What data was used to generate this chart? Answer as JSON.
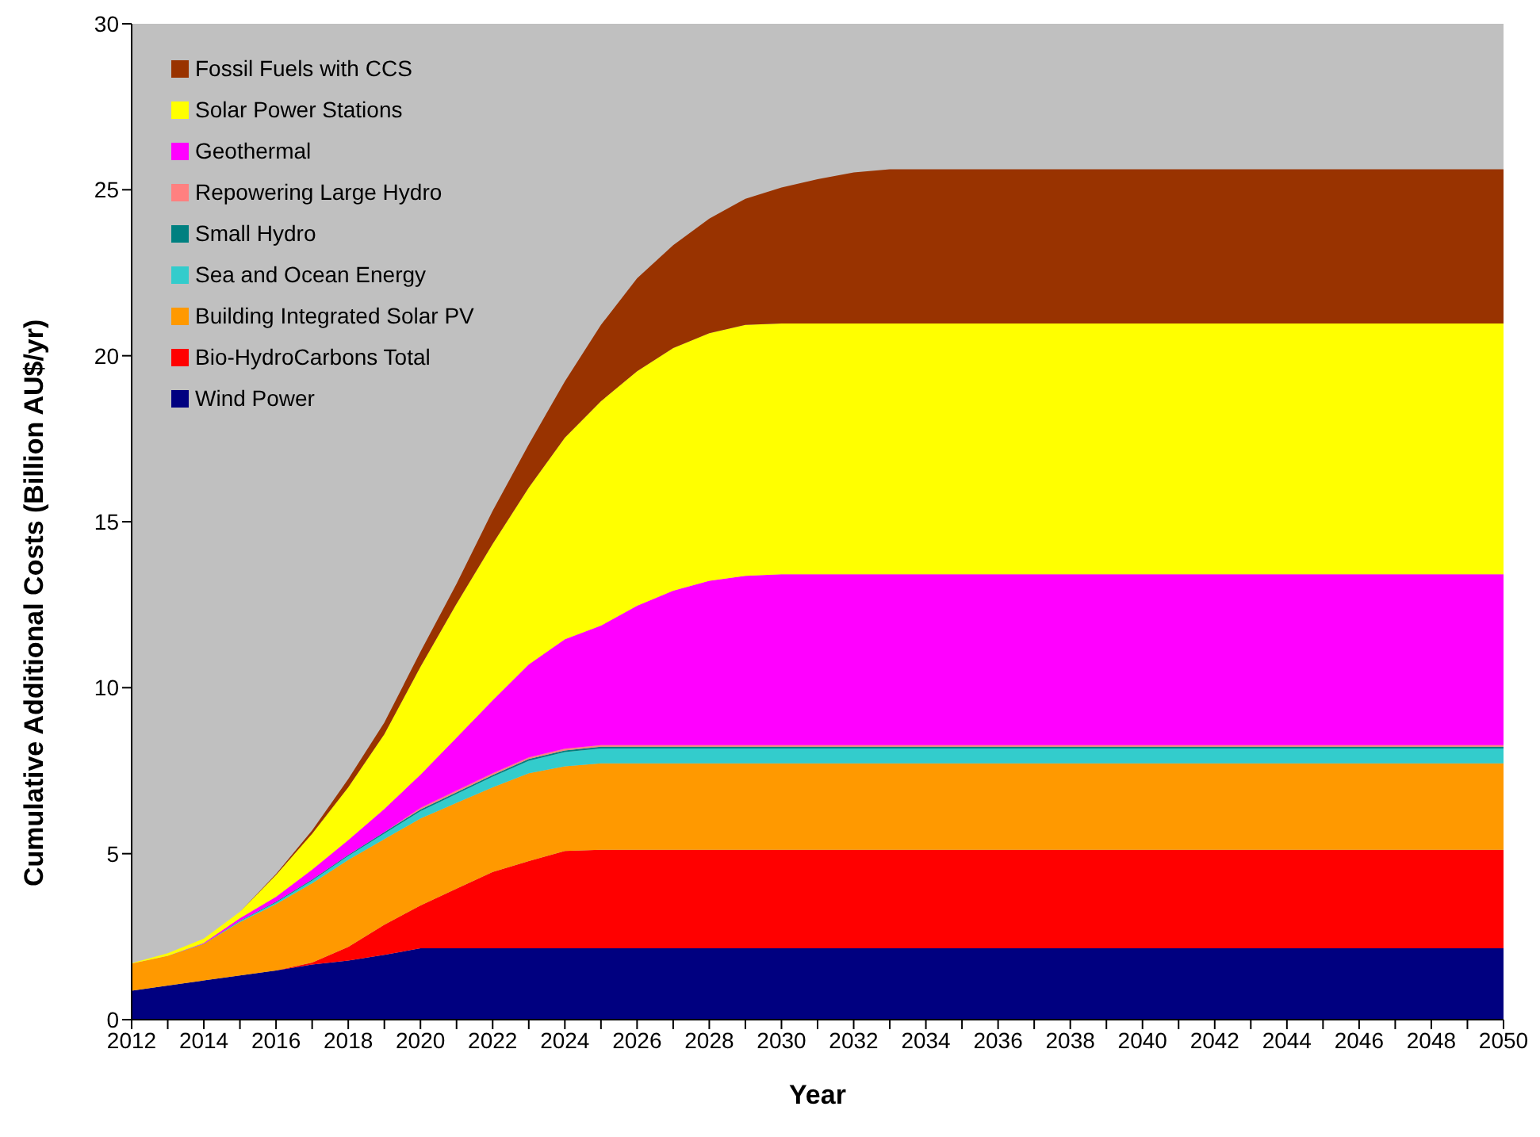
{
  "chart_data": {
    "type": "area",
    "stacked": true,
    "xlabel": "Year",
    "ylabel": "Cumulative Additional Costs (Billion AU$/yr)",
    "x": [
      2012,
      2013,
      2014,
      2015,
      2016,
      2017,
      2018,
      2019,
      2020,
      2021,
      2022,
      2023,
      2024,
      2025,
      2026,
      2027,
      2028,
      2029,
      2030,
      2031,
      2032,
      2033,
      2034,
      2035,
      2036,
      2037,
      2038,
      2039,
      2040,
      2041,
      2042,
      2043,
      2044,
      2045,
      2046,
      2047,
      2048,
      2049,
      2050
    ],
    "xlim": [
      2012,
      2050
    ],
    "xticks": [
      2012,
      {
        "value": 2013,
        "label": null
      },
      2014,
      {
        "value": 2015,
        "label": null
      },
      2016,
      {
        "value": 2017,
        "label": null
      },
      2018,
      {
        "value": 2019,
        "label": null
      },
      2020,
      {
        "value": 2021,
        "label": null
      },
      2022,
      {
        "value": 2023,
        "label": null
      },
      2024,
      {
        "value": 2025,
        "label": null
      },
      2026,
      {
        "value": 2027,
        "label": null
      },
      2028,
      {
        "value": 2029,
        "label": null
      },
      2030,
      {
        "value": 2031,
        "label": null
      },
      2032,
      {
        "value": 2033,
        "label": null
      },
      2034,
      {
        "value": 2035,
        "label": null
      },
      2036,
      {
        "value": 2037,
        "label": null
      },
      2038,
      {
        "value": 2039,
        "label": null
      },
      2040,
      {
        "value": 2041,
        "label": null
      },
      2042,
      {
        "value": 2043,
        "label": null
      },
      2044,
      {
        "value": 2045,
        "label": null
      },
      2046,
      {
        "value": 2047,
        "label": null
      },
      2048,
      {
        "value": 2049,
        "label": null
      },
      2050
    ],
    "ylim": [
      0,
      30
    ],
    "yticks": [
      0,
      5,
      10,
      15,
      20,
      25,
      30
    ],
    "legend": "top left",
    "series": [
      {
        "name": "Wind Power",
        "color": "#000080",
        "values": [
          0.87,
          1.03,
          1.18,
          1.33,
          1.48,
          1.66,
          1.78,
          1.95,
          2.15,
          2.15,
          2.15,
          2.15,
          2.15,
          2.15,
          2.15,
          2.15,
          2.15,
          2.15,
          2.15,
          2.15,
          2.15,
          2.15,
          2.15,
          2.15,
          2.15,
          2.15,
          2.15,
          2.15,
          2.15,
          2.15,
          2.15,
          2.15,
          2.15,
          2.15,
          2.15,
          2.15,
          2.15,
          2.15,
          2.15
        ]
      },
      {
        "name": "Bio-HydroCarbons Total",
        "color": "#ff0000",
        "values": [
          0,
          0,
          0,
          0,
          0,
          0.06,
          0.41,
          0.91,
          1.29,
          1.8,
          2.3,
          2.63,
          2.93,
          2.97,
          2.97,
          2.97,
          2.97,
          2.97,
          2.97,
          2.97,
          2.97,
          2.97,
          2.97,
          2.97,
          2.97,
          2.97,
          2.97,
          2.97,
          2.97,
          2.97,
          2.97,
          2.97,
          2.97,
          2.97,
          2.97,
          2.97,
          2.97,
          2.97,
          2.97
        ]
      },
      {
        "name": "Building Integrated Solar PV",
        "color": "#ff9900",
        "values": [
          0.82,
          0.89,
          1.1,
          1.61,
          2.0,
          2.39,
          2.62,
          2.58,
          2.62,
          2.58,
          2.55,
          2.64,
          2.55,
          2.6,
          2.6,
          2.6,
          2.6,
          2.6,
          2.6,
          2.6,
          2.6,
          2.6,
          2.6,
          2.6,
          2.6,
          2.6,
          2.6,
          2.6,
          2.6,
          2.6,
          2.6,
          2.6,
          2.6,
          2.6,
          2.6,
          2.6,
          2.6,
          2.6,
          2.6
        ]
      },
      {
        "name": "Sea and Ocean Energy",
        "color": "#33cccc",
        "values": [
          0,
          0,
          0.01,
          0.03,
          0.05,
          0.08,
          0.12,
          0.17,
          0.22,
          0.27,
          0.32,
          0.38,
          0.43,
          0.45,
          0.45,
          0.45,
          0.45,
          0.45,
          0.45,
          0.45,
          0.45,
          0.45,
          0.45,
          0.45,
          0.45,
          0.45,
          0.45,
          0.45,
          0.45,
          0.45,
          0.45,
          0.45,
          0.45,
          0.45,
          0.45,
          0.45,
          0.45,
          0.45,
          0.45
        ]
      },
      {
        "name": "Small Hydro",
        "color": "#008080",
        "values": [
          0,
          0,
          0,
          0.01,
          0.02,
          0.03,
          0.03,
          0.04,
          0.05,
          0.05,
          0.05,
          0.05,
          0.05,
          0.05,
          0.05,
          0.05,
          0.05,
          0.05,
          0.05,
          0.05,
          0.05,
          0.05,
          0.05,
          0.05,
          0.05,
          0.05,
          0.05,
          0.05,
          0.05,
          0.05,
          0.05,
          0.05,
          0.05,
          0.05,
          0.05,
          0.05,
          0.05,
          0.05,
          0.05
        ]
      },
      {
        "name": "Repowering Large Hydro",
        "color": "#ff8080",
        "values": [
          0,
          0,
          0,
          0,
          0,
          0,
          0,
          0,
          0.05,
          0.05,
          0.05,
          0.05,
          0.05,
          0.05,
          0.05,
          0.05,
          0.05,
          0.05,
          0.05,
          0.05,
          0.05,
          0.05,
          0.05,
          0.05,
          0.05,
          0.05,
          0.05,
          0.05,
          0.05,
          0.05,
          0.05,
          0.05,
          0.05,
          0.05,
          0.05,
          0.05,
          0.05,
          0.05,
          0.05
        ]
      },
      {
        "name": "Geothermal",
        "color": "#ff00ff",
        "values": [
          0,
          0,
          0.02,
          0.08,
          0.15,
          0.3,
          0.45,
          0.7,
          1.0,
          1.6,
          2.2,
          2.8,
          3.3,
          3.6,
          4.2,
          4.65,
          4.95,
          5.1,
          5.15,
          5.15,
          5.15,
          5.15,
          5.15,
          5.15,
          5.15,
          5.15,
          5.15,
          5.15,
          5.15,
          5.15,
          5.15,
          5.15,
          5.15,
          5.15,
          5.15,
          5.15,
          5.15,
          5.15,
          5.15
        ]
      },
      {
        "name": "Solar Power Stations",
        "color": "#ffff00",
        "values": [
          0.01,
          0.08,
          0.13,
          0.19,
          0.66,
          1.08,
          1.59,
          2.25,
          3.25,
          4.03,
          4.71,
          5.33,
          6.07,
          6.76,
          7.06,
          7.31,
          7.46,
          7.56,
          7.55,
          7.55,
          7.55,
          7.55,
          7.55,
          7.55,
          7.55,
          7.55,
          7.55,
          7.55,
          7.55,
          7.55,
          7.55,
          7.55,
          7.55,
          7.55,
          7.55,
          7.55,
          7.55,
          7.55,
          7.55
        ]
      },
      {
        "name": "Fossil Fuels with CCS",
        "color": "#993300",
        "values": [
          0,
          0,
          0,
          0,
          0.03,
          0.1,
          0.25,
          0.35,
          0.45,
          0.6,
          1.0,
          1.3,
          1.7,
          2.3,
          2.8,
          3.1,
          3.45,
          3.8,
          4.1,
          4.35,
          4.55,
          4.65,
          4.65,
          4.65,
          4.65,
          4.65,
          4.65,
          4.65,
          4.65,
          4.65,
          4.65,
          4.65,
          4.65,
          4.65,
          4.65,
          4.65,
          4.65,
          4.65,
          4.65
        ]
      }
    ]
  }
}
